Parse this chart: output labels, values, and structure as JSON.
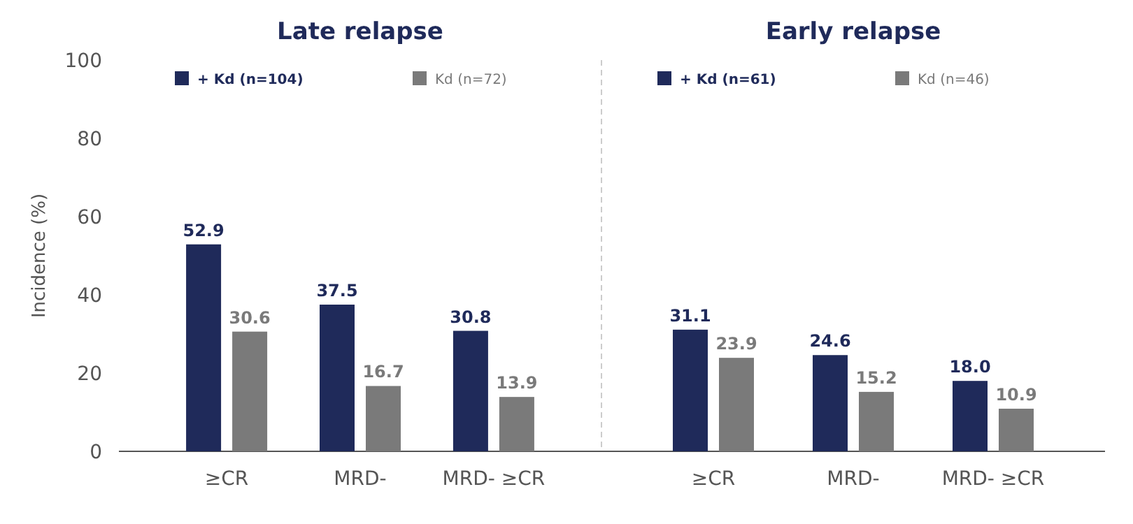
{
  "chart_data": [
    {
      "type": "bar",
      "title": "Late relapse",
      "ylabel": "Incidence (%)",
      "categories": [
        "≥CR",
        "MRD-",
        "MRD- ≥CR"
      ],
      "ylim": [
        0,
        100
      ],
      "yticks": [
        0,
        20,
        40,
        60,
        80,
        100
      ],
      "legend": "top",
      "grid": false,
      "series": [
        {
          "name": "+ Kd (n=104)",
          "color": "#1f2a5a",
          "values": [
            52.9,
            37.5,
            30.8
          ],
          "value_labels": [
            "52.9",
            "37.5",
            "30.8"
          ]
        },
        {
          "name": "Kd (n=72)",
          "color": "#7a7a7a",
          "values": [
            30.6,
            16.7,
            13.9
          ],
          "value_labels": [
            "30.6",
            "16.7",
            "13.9"
          ]
        }
      ]
    },
    {
      "type": "bar",
      "title": "Early relapse",
      "categories": [
        "≥CR",
        "MRD-",
        "MRD- ≥CR"
      ],
      "ylim": [
        0,
        100
      ],
      "tick_labels": "x",
      "legend": "top",
      "grid": false,
      "series": [
        {
          "name": "+ Kd (n=61)",
          "color": "#1f2a5a",
          "values": [
            31.1,
            24.6,
            18.0
          ],
          "value_labels": [
            "31.1",
            "24.6",
            "18.0"
          ]
        },
        {
          "name": "Kd (n=46)",
          "color": "#7a7a7a",
          "values": [
            23.9,
            15.2,
            10.9
          ],
          "value_labels": [
            "23.9",
            "15.2",
            "10.9"
          ]
        }
      ]
    }
  ]
}
